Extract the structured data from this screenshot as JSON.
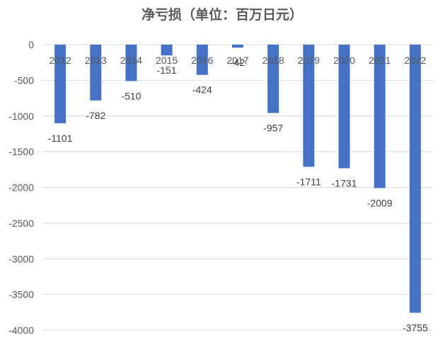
{
  "chart_data": {
    "type": "bar",
    "title": "净亏损（单位：百万日元）",
    "categories": [
      "2012",
      "2013",
      "2014",
      "2015",
      "2016",
      "2017",
      "2018",
      "2019",
      "2020",
      "2021",
      "2022"
    ],
    "values": [
      -1101,
      -782,
      -510,
      -151,
      -424,
      -42,
      -957,
      -1711,
      -1731,
      -2009,
      -3755
    ],
    "ylim": [
      -4000,
      0
    ],
    "yticks": [
      0,
      -500,
      -1000,
      -1500,
      -2000,
      -2500,
      -3000,
      -3500,
      -4000
    ],
    "grid": true,
    "legend": "none",
    "bar_color": "#4472C4"
  }
}
